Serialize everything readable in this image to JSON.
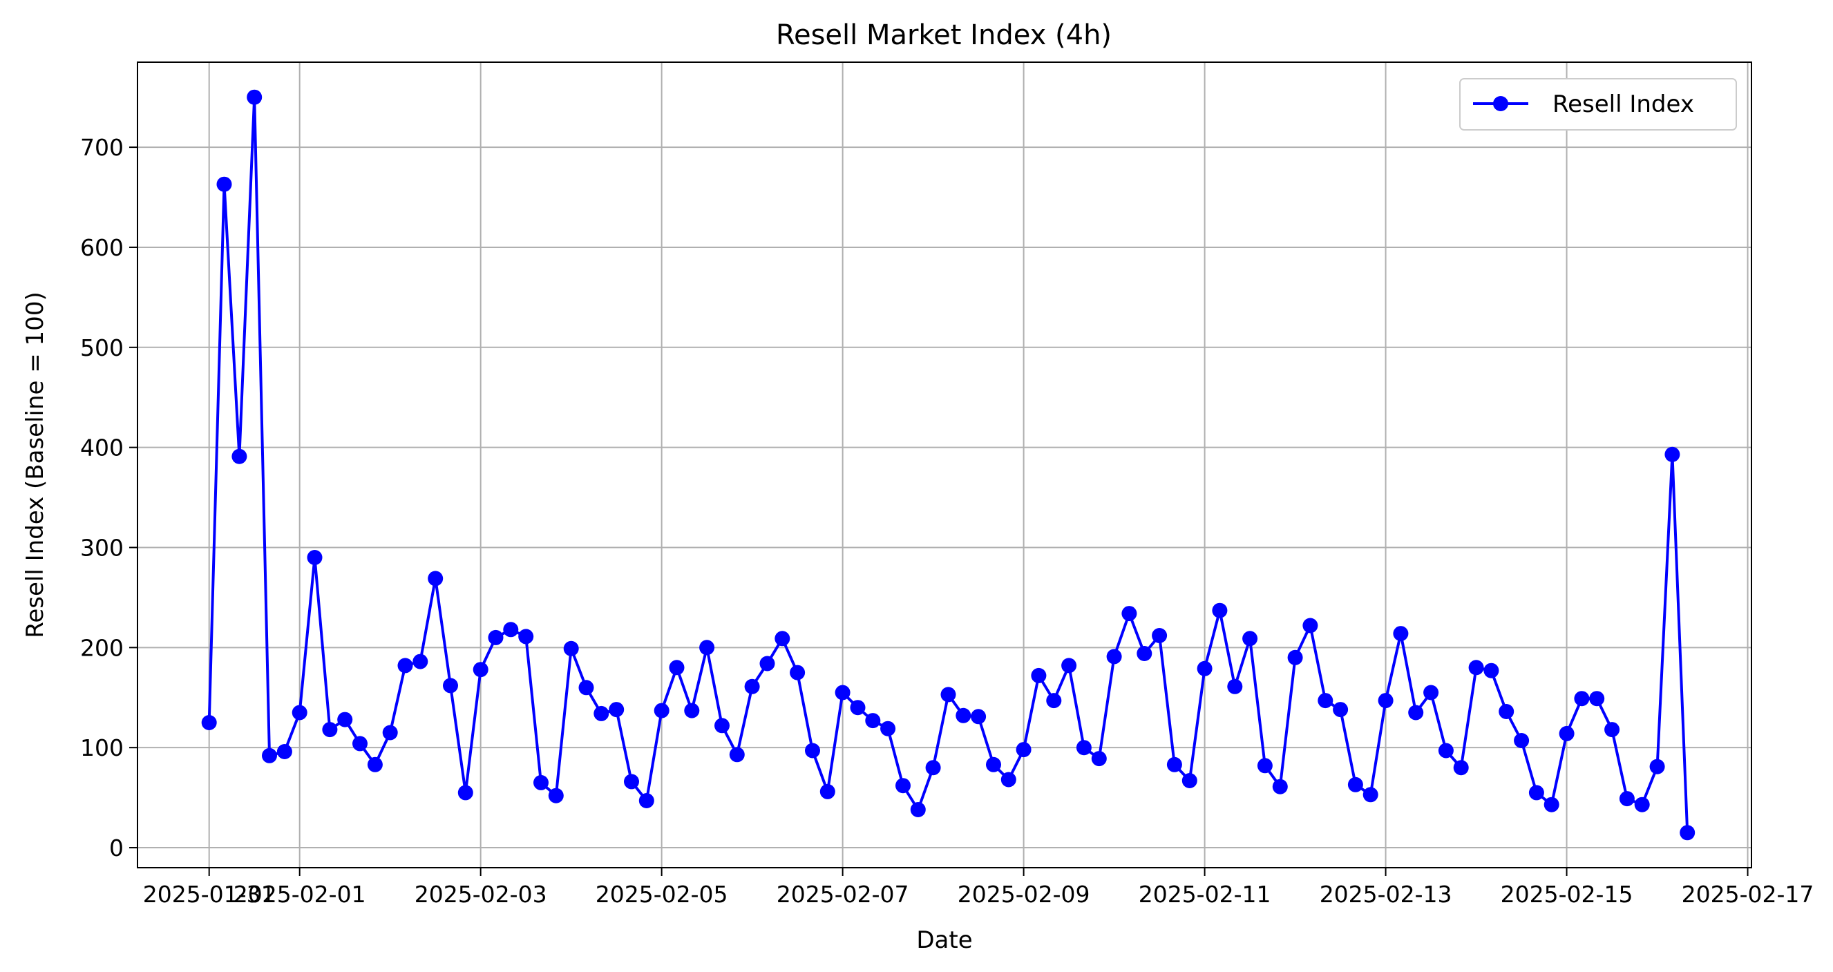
{
  "chart_data": {
    "type": "line",
    "title": "Resell Market Index (4h)",
    "xlabel": "Date",
    "ylabel": "Resell Index (Baseline = 100)",
    "x_ticks": [
      "2025-01-31",
      "2025-02-01",
      "2025-02-03",
      "2025-02-05",
      "2025-02-07",
      "2025-02-09",
      "2025-02-11",
      "2025-02-13",
      "2025-02-15",
      "2025-02-17"
    ],
    "y_ticks": [
      0,
      100,
      200,
      300,
      400,
      500,
      600,
      700
    ],
    "x_range": [
      "2025-01-30 05:00",
      "2025-02-17 01:00"
    ],
    "ylim": [
      -20,
      785
    ],
    "x_interval_hours": 4,
    "x_start": "2025-01-31 00:00",
    "grid": true,
    "legend_position": "top-right",
    "series": [
      {
        "name": "Resell Index",
        "color": "#0000ff",
        "marker": "circle",
        "values": [
          125,
          663,
          391,
          750,
          92,
          96,
          135,
          290,
          118,
          128,
          104,
          83,
          115,
          182,
          186,
          269,
          162,
          55,
          178,
          210,
          218,
          211,
          65,
          52,
          199,
          160,
          134,
          138,
          66,
          47,
          137,
          180,
          137,
          200,
          122,
          93,
          161,
          184,
          209,
          175,
          97,
          56,
          155,
          140,
          127,
          119,
          62,
          38,
          80,
          153,
          132,
          131,
          83,
          68,
          98,
          172,
          147,
          182,
          100,
          89,
          191,
          234,
          194,
          212,
          83,
          67,
          179,
          237,
          161,
          209,
          82,
          61,
          190,
          222,
          147,
          138,
          63,
          53,
          147,
          214,
          135,
          155,
          97,
          80,
          180,
          177,
          136,
          107,
          55,
          43,
          114,
          149,
          149,
          118,
          49,
          43,
          81,
          393,
          15
        ]
      }
    ]
  }
}
